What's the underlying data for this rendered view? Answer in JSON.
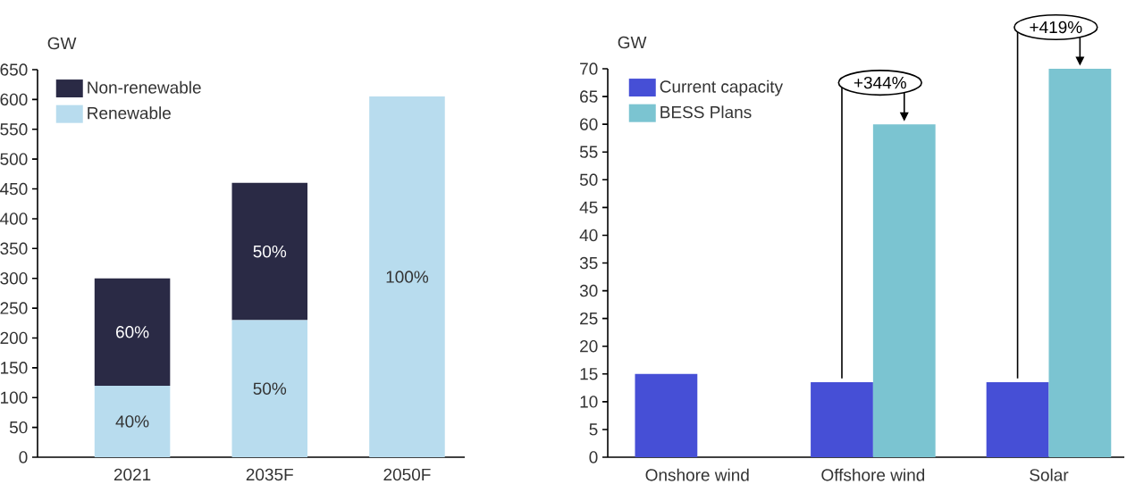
{
  "chart_data": [
    {
      "type": "bar",
      "stacked": true,
      "ylabel": "GW",
      "categories": [
        "2021",
        "2035F",
        "2050F"
      ],
      "series": [
        {
          "name": "Renewable",
          "color": "#b8dcee",
          "values": [
            120,
            230,
            605
          ]
        },
        {
          "name": "Non-renewable",
          "color": "#2a2a45",
          "values": [
            180,
            230,
            null
          ]
        }
      ],
      "ylim": [
        0,
        650
      ],
      "yticks": [
        0,
        50,
        100,
        150,
        200,
        250,
        300,
        350,
        400,
        450,
        500,
        550,
        600,
        650
      ],
      "legend": "top left",
      "annotations": [
        "40%",
        "60%",
        "50%",
        "50%",
        "100%"
      ]
    },
    {
      "type": "bar",
      "ylabel": "GW",
      "categories": [
        "Onshore wind",
        "Offshore wind",
        "Solar"
      ],
      "series": [
        {
          "name": "Current capacity",
          "color": "#464fd6",
          "values": [
            15,
            13.5,
            13.5
          ]
        },
        {
          "name": "BESS Plans",
          "color": "#7bc4d1",
          "values": [
            null,
            60,
            70
          ]
        }
      ],
      "ylim": [
        0,
        70
      ],
      "yticks": [
        0,
        5,
        10,
        15,
        20,
        25,
        30,
        35,
        40,
        45,
        50,
        55,
        60,
        65,
        70
      ],
      "legend": "top left",
      "annotations": [
        {
          "text": "+344%",
          "x": "Offshore wind",
          "y": 60
        },
        {
          "text": "+419%",
          "x": "Solar",
          "y": 70
        }
      ]
    }
  ]
}
